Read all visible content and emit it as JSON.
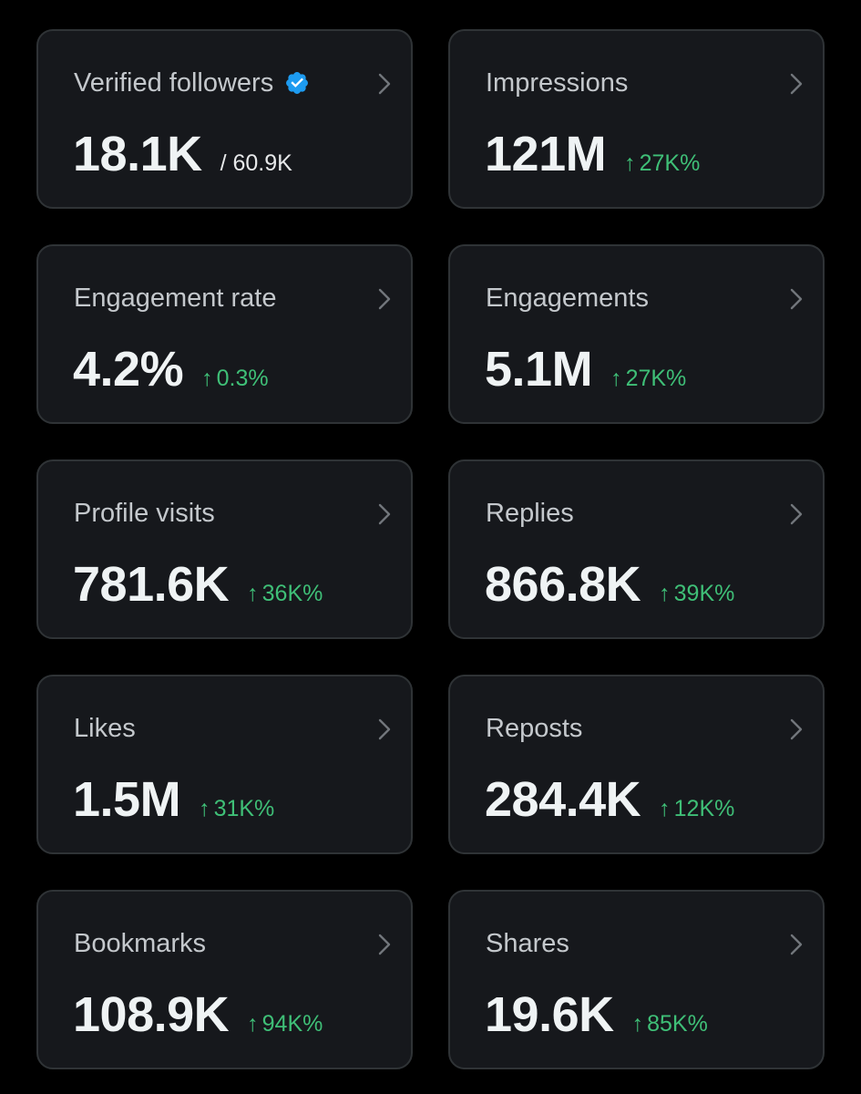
{
  "colors": {
    "background": "#000000",
    "card": "#16181c",
    "card_border": "#2f3336",
    "positive": "#3fbf77",
    "verified": "#1d9bf0"
  },
  "cards": [
    {
      "title": "Verified followers",
      "value": "18.1K",
      "secondary": "/ 60.9K",
      "icon": "verified-badge-icon"
    },
    {
      "title": "Impressions",
      "value": "121M",
      "change": "27K%",
      "direction": "up"
    },
    {
      "title": "Engagement rate",
      "value": "4.2%",
      "change": "0.3%",
      "direction": "up"
    },
    {
      "title": "Engagements",
      "value": "5.1M",
      "change": "27K%",
      "direction": "up"
    },
    {
      "title": "Profile visits",
      "value": "781.6K",
      "change": "36K%",
      "direction": "up"
    },
    {
      "title": "Replies",
      "value": "866.8K",
      "change": "39K%",
      "direction": "up"
    },
    {
      "title": "Likes",
      "value": "1.5M",
      "change": "31K%",
      "direction": "up"
    },
    {
      "title": "Reposts",
      "value": "284.4K",
      "change": "12K%",
      "direction": "up"
    },
    {
      "title": "Bookmarks",
      "value": "108.9K",
      "change": "94K%",
      "direction": "up"
    },
    {
      "title": "Shares",
      "value": "19.6K",
      "change": "85K%",
      "direction": "up"
    }
  ],
  "arrow_up": "↑"
}
